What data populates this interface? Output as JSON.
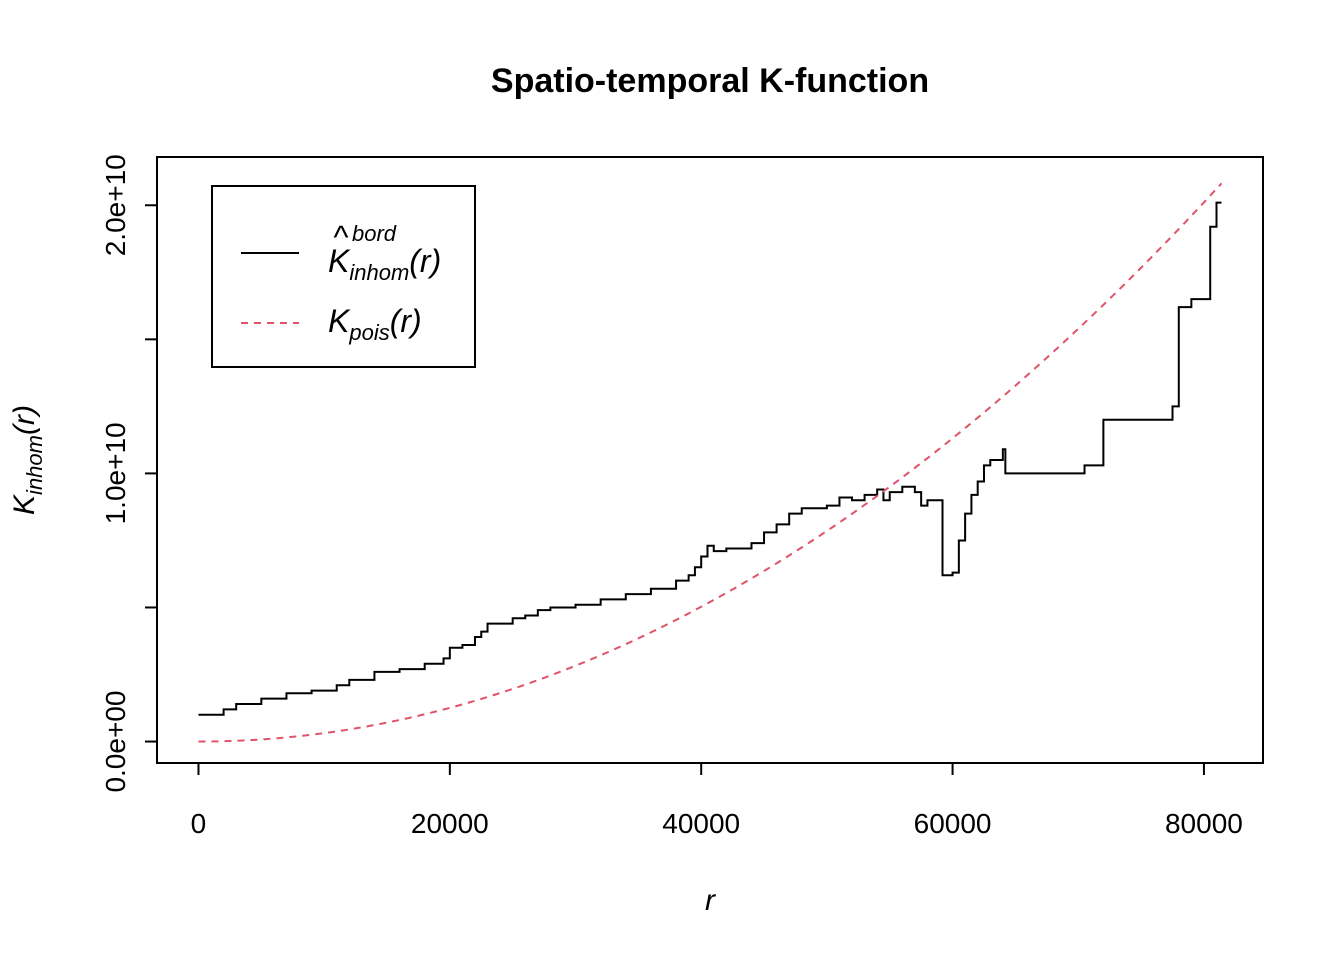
{
  "chart_data": {
    "type": "line",
    "title": "Spatio-temporal K-function",
    "xlabel": "r",
    "ylabel": {
      "main": "K",
      "sub": "inhom",
      "arg": "(r)"
    },
    "xlim": [
      -3300,
      84700
    ],
    "ylim": [
      -800000000,
      21800000000
    ],
    "x_ticks": [
      0,
      20000,
      40000,
      60000,
      80000
    ],
    "x_tick_labels": [
      "0",
      "20000",
      "40000",
      "60000",
      "80000"
    ],
    "y_ticks": [
      0,
      5000000000,
      10000000000,
      15000000000,
      20000000000
    ],
    "y_tick_labels": [
      "0.0e+00",
      "",
      "1.0e+10",
      "",
      "2.0e+10"
    ],
    "legend_position": "top-left",
    "series": [
      {
        "name": "K_inhom^bord(r)",
        "legend": {
          "main": "K",
          "hat": "^",
          "sub": "inhom",
          "sup": "bord",
          "arg": "(r)"
        },
        "color": "#000000",
        "dash": "solid",
        "step": true,
        "x": [
          0,
          2000,
          3000,
          5000,
          7000,
          9000,
          11000,
          12000,
          14000,
          16000,
          18000,
          19500,
          20000,
          21000,
          22000,
          22500,
          23000,
          25000,
          26000,
          27000,
          28000,
          30000,
          32000,
          34000,
          36000,
          38000,
          39000,
          39500,
          40000,
          40500,
          41000,
          42000,
          44000,
          45000,
          46000,
          47000,
          48000,
          50000,
          51000,
          52000,
          53000,
          54000,
          54500,
          55000,
          56000,
          57000,
          57500,
          58000,
          59000,
          59200,
          60000,
          60500,
          61000,
          61500,
          62000,
          62500,
          63000,
          64000,
          64200,
          66000,
          68000,
          70000,
          70500,
          71500,
          72000,
          75000,
          77000,
          77500,
          78000,
          79000,
          80000,
          80500,
          81000,
          81400
        ],
        "y": [
          1000000000,
          1200000000,
          1400000000,
          1600000000,
          1800000000,
          1900000000,
          2100000000,
          2300000000,
          2600000000,
          2700000000,
          2900000000,
          3100000000,
          3500000000,
          3600000000,
          3900000000,
          4100000000,
          4400000000,
          4600000000,
          4700000000,
          4900000000,
          5000000000,
          5100000000,
          5300000000,
          5500000000,
          5700000000,
          6000000000,
          6200000000,
          6500000000,
          6900000000,
          7300000000,
          7100000000,
          7200000000,
          7400000000,
          7800000000,
          8100000000,
          8500000000,
          8700000000,
          8800000000,
          9100000000,
          9000000000,
          9200000000,
          9400000000,
          9000000000,
          9300000000,
          9500000000,
          9300000000,
          8800000000,
          9000000000,
          9000000000,
          6200000000,
          6300000000,
          7500000000,
          8500000000,
          9200000000,
          9700000000,
          10300000000,
          10500000000,
          10900000000,
          10000000000,
          10000000000,
          10000000000,
          10000000000,
          10300000000,
          10300000000,
          12000000000,
          12000000000,
          12000000000,
          12500000000,
          16200000000,
          16500000000,
          16500000000,
          19200000000,
          20100000000,
          20100000000
        ]
      },
      {
        "name": "K_pois(r)",
        "legend": {
          "main": "K",
          "sub": "pois",
          "arg": "(r)"
        },
        "color": "#DF536B",
        "dash": "dashed",
        "formula": "pi*r^2",
        "x_range": [
          0,
          81400
        ]
      }
    ],
    "grid": false
  }
}
